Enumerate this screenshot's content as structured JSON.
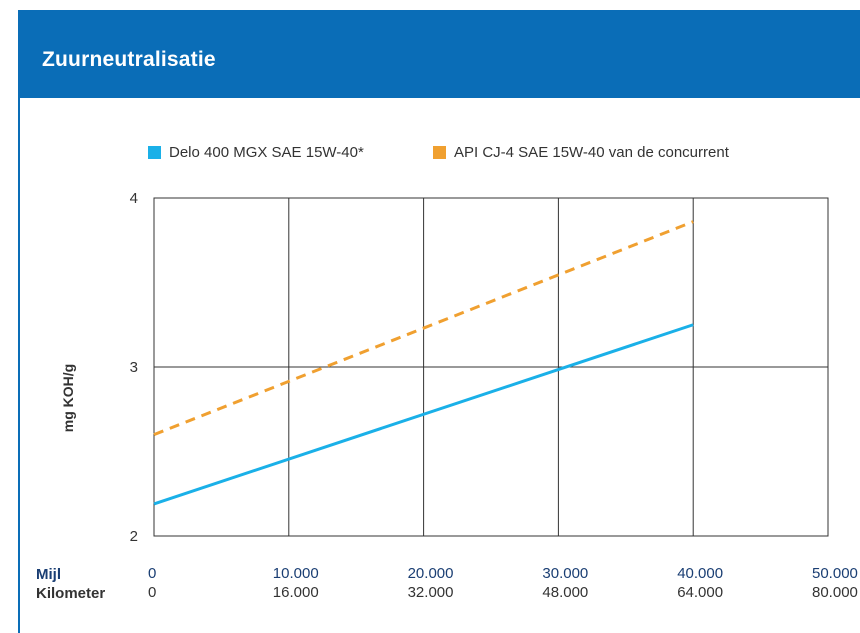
{
  "header": {
    "title": "Zuurneutralisatie"
  },
  "colors": {
    "header_bg": "#0a6db7",
    "series_a": "#1ab0e8",
    "series_b": "#f0a030",
    "grid": "#333333"
  },
  "x_rows": {
    "mijl_label": "Mijl",
    "km_label": "Kilometer"
  },
  "chart_data": {
    "type": "line",
    "title": "Zuurneutralisatie",
    "ylabel": "mg KOH/g",
    "xlabel": "Mijl / Kilometer",
    "xlim": [
      0,
      50000
    ],
    "ylim": [
      2,
      4
    ],
    "x_ticks_mijl": [
      "0",
      "10.000",
      "20.000",
      "30.000",
      "40.000",
      "50.000"
    ],
    "x_ticks_km": [
      "0",
      "16.000",
      "32.000",
      "48.000",
      "64.000",
      "80.000"
    ],
    "y_ticks": [
      "2",
      "3",
      "4"
    ],
    "legend_position": "top",
    "grid": true,
    "series": [
      {
        "name": "Delo 400 MGX SAE 15W-40*",
        "style": "solid",
        "color": "#1ab0e8",
        "x": [
          0,
          40000
        ],
        "y": [
          2.19,
          3.25
        ]
      },
      {
        "name": "API CJ-4 SAE 15W-40 van de concurrent",
        "style": "dashed",
        "color": "#f0a030",
        "x": [
          0,
          40000
        ],
        "y": [
          2.6,
          3.86
        ]
      }
    ]
  }
}
